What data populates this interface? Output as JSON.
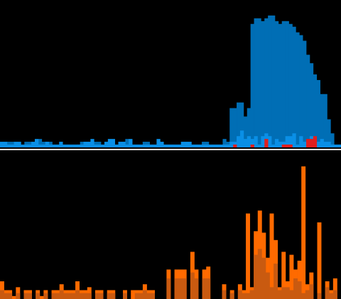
{
  "colors": {
    "background": "#000000",
    "top_base": "#006EB5",
    "top_highlight": "#0A8FE6",
    "top_spike": "#E01E1E",
    "divider": "#FFFFFF",
    "bottom_primary": "#FF6A00",
    "bottom_secondary": "#C95A10"
  },
  "chart_data": [
    {
      "type": "bar",
      "title": "",
      "xlabel": "",
      "ylabel": "",
      "ylim": [
        0,
        100
      ],
      "grid": false,
      "legend": "none",
      "series": [
        {
          "values": [
            2,
            2,
            4,
            4,
            2,
            2,
            0,
            4,
            4,
            0,
            4,
            6,
            4,
            4,
            4,
            0,
            0,
            0,
            2,
            2,
            0,
            0,
            2,
            4,
            4,
            4,
            2,
            4,
            4,
            2,
            2,
            2,
            0,
            0,
            4,
            4,
            6,
            2,
            2,
            2,
            0,
            4,
            4,
            2,
            0,
            2,
            2,
            2,
            2,
            2,
            0,
            0,
            0,
            0,
            2,
            2,
            2,
            0,
            4,
            4,
            0,
            0,
            0,
            0,
            6,
            4,
            28,
            28,
            32,
            32,
            22,
            28,
            88,
            92,
            92,
            90,
            92,
            94,
            94,
            90,
            88,
            90,
            90,
            88,
            86,
            82,
            80,
            76,
            66,
            60,
            52,
            48,
            38,
            38,
            20,
            10,
            2,
            2
          ]
        },
        {
          "values": [
            4,
            4,
            2,
            2,
            4,
            4,
            2,
            2,
            2,
            4,
            6,
            2,
            2,
            4,
            2,
            2,
            2,
            4,
            2,
            2,
            2,
            2,
            2,
            2,
            4,
            4,
            6,
            2,
            2,
            2,
            4,
            6,
            6,
            2,
            4,
            4,
            2,
            6,
            2,
            2,
            2,
            2,
            2,
            2,
            2,
            6,
            4,
            2,
            2,
            2,
            2,
            2,
            4,
            4,
            4,
            2,
            2,
            2,
            2,
            2,
            2,
            2,
            2,
            2,
            2,
            2,
            4,
            4,
            8,
            12,
            6,
            8,
            6,
            8,
            2,
            8,
            10,
            8,
            2,
            6,
            4,
            4,
            8,
            8,
            10,
            2,
            8,
            4,
            4,
            8,
            4,
            4,
            6,
            4,
            4,
            2,
            2,
            2
          ]
        },
        {
          "values": [
            0,
            0,
            0,
            0,
            0,
            0,
            0,
            0,
            0,
            0,
            0,
            0,
            0,
            0,
            0,
            0,
            0,
            0,
            0,
            0,
            0,
            0,
            0,
            0,
            0,
            0,
            0,
            0,
            0,
            0,
            0,
            0,
            0,
            0,
            0,
            0,
            0,
            0,
            0,
            0,
            0,
            0,
            0,
            0,
            0,
            0,
            0,
            0,
            0,
            0,
            0,
            0,
            0,
            0,
            0,
            0,
            0,
            0,
            0,
            0,
            0,
            0,
            0,
            0,
            0,
            0,
            0,
            2,
            0,
            0,
            0,
            0,
            2,
            0,
            0,
            0,
            6,
            0,
            0,
            0,
            0,
            2,
            2,
            2,
            0,
            0,
            0,
            0,
            6,
            6,
            8,
            0,
            0,
            0,
            0,
            0,
            0,
            0
          ]
        }
      ]
    },
    {
      "type": "bar",
      "title": "",
      "xlabel": "",
      "ylabel": "",
      "ylim": [
        0,
        100
      ],
      "grid": false,
      "legend": "none",
      "series": [
        {
          "values": [
            12,
            6,
            6,
            2,
            8,
            0,
            6,
            6,
            0,
            6,
            2,
            6,
            0,
            6,
            6,
            10,
            6,
            6,
            6,
            12,
            6,
            6,
            8,
            0,
            6,
            6,
            0,
            6,
            6,
            0,
            0,
            6,
            0,
            6,
            6,
            6,
            10,
            6,
            6,
            0,
            0,
            0,
            20,
            0,
            20,
            20,
            20,
            0,
            32,
            20,
            0,
            20,
            22,
            0,
            0,
            0,
            10,
            0,
            6,
            0,
            10,
            6,
            58,
            8,
            46,
            60,
            45,
            28,
            58,
            40,
            8,
            32,
            12,
            30,
            20,
            26,
            90,
            10,
            18,
            0,
            52,
            0,
            12,
            6,
            14,
            0
          ]
        },
        {
          "values": [
            6,
            4,
            4,
            0,
            4,
            0,
            4,
            4,
            0,
            4,
            0,
            4,
            0,
            4,
            4,
            6,
            4,
            4,
            4,
            6,
            4,
            4,
            4,
            0,
            4,
            4,
            0,
            4,
            4,
            0,
            0,
            4,
            0,
            0,
            4,
            4,
            6,
            4,
            4,
            0,
            0,
            0,
            14,
            0,
            14,
            14,
            14,
            0,
            18,
            14,
            0,
            14,
            14,
            0,
            0,
            0,
            6,
            0,
            4,
            0,
            6,
            4,
            4,
            6,
            30,
            34,
            28,
            18,
            8,
            24,
            6,
            8,
            8,
            6,
            14,
            12,
            4,
            6,
            10,
            0,
            4,
            0,
            8,
            4,
            6,
            0
          ]
        }
      ]
    }
  ]
}
